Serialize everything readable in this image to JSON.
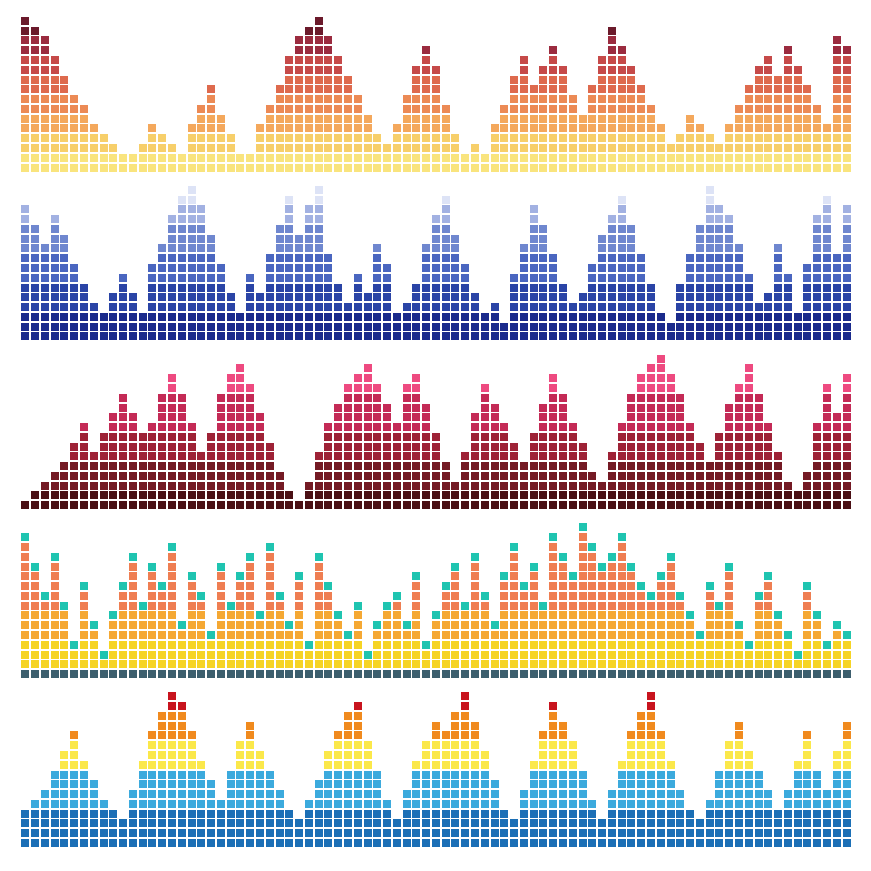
{
  "equalizers": [
    {
      "bands": [
        {
          "color": "#f9e47e",
          "rows": 2
        },
        {
          "color": "#f7cf6a",
          "rows": 2
        },
        {
          "color": "#f4a85c",
          "rows": 2
        },
        {
          "color": "#ec8a55",
          "rows": 2
        },
        {
          "color": "#de6a4e",
          "rows": 2
        },
        {
          "color": "#c64a49",
          "rows": 2
        },
        {
          "color": "#9b2b3f",
          "rows": 2
        },
        {
          "color": "#6b1a2b",
          "rows": 2
        }
      ],
      "heights": [
        16,
        15,
        14,
        12,
        10,
        8,
        7,
        5,
        4,
        3,
        2,
        2,
        3,
        5,
        4,
        3,
        2,
        5,
        7,
        9,
        6,
        4,
        2,
        2,
        5,
        7,
        9,
        12,
        14,
        15,
        16,
        14,
        12,
        10,
        8,
        6,
        4,
        3,
        5,
        8,
        11,
        13,
        11,
        7,
        4,
        2,
        3,
        2,
        5,
        7,
        10,
        12,
        9,
        11,
        13,
        11,
        8,
        6,
        9,
        12,
        15,
        13,
        11,
        9,
        7,
        5,
        3,
        4,
        6,
        5,
        4,
        3,
        5,
        7,
        9,
        11,
        12,
        10,
        13,
        11,
        9,
        7,
        5,
        14,
        13
      ]
    },
    {
      "bands": [
        {
          "color": "#1a2a8c",
          "rows": 3
        },
        {
          "color": "#2a44a6",
          "rows": 3
        },
        {
          "color": "#4a66c0",
          "rows": 3
        },
        {
          "color": "#6f87cf",
          "rows": 3
        },
        {
          "color": "#a2b1e2",
          "rows": 2
        },
        {
          "color": "#dde3f6",
          "rows": 2
        }
      ],
      "heights": [
        14,
        12,
        10,
        13,
        11,
        8,
        6,
        4,
        3,
        5,
        7,
        5,
        3,
        8,
        10,
        13,
        15,
        16,
        14,
        11,
        8,
        5,
        3,
        7,
        5,
        9,
        12,
        15,
        11,
        14,
        16,
        9,
        6,
        4,
        7,
        5,
        10,
        8,
        3,
        4,
        6,
        10,
        13,
        15,
        11,
        8,
        5,
        3,
        4,
        2,
        7,
        10,
        14,
        12,
        9,
        6,
        4,
        5,
        8,
        11,
        13,
        15,
        12,
        9,
        6,
        3,
        2,
        6,
        9,
        12,
        16,
        14,
        13,
        10,
        7,
        4,
        5,
        10,
        7,
        3,
        8,
        13,
        15,
        9,
        14
      ]
    },
    {
      "bands": [
        {
          "color": "#4a0f14",
          "rows": 2
        },
        {
          "color": "#741a24",
          "rows": 3
        },
        {
          "color": "#9e2236",
          "rows": 3
        },
        {
          "color": "#c42a56",
          "rows": 4
        },
        {
          "color": "#ee4a80",
          "rows": 4
        }
      ],
      "heights": [
        1,
        2,
        3,
        4,
        5,
        7,
        9,
        6,
        8,
        10,
        12,
        10,
        8,
        9,
        12,
        14,
        12,
        9,
        6,
        8,
        12,
        14,
        15,
        13,
        10,
        7,
        4,
        2,
        1,
        3,
        6,
        9,
        11,
        13,
        14,
        15,
        13,
        11,
        9,
        13,
        14,
        11,
        8,
        5,
        3,
        6,
        10,
        13,
        11,
        9,
        7,
        5,
        8,
        11,
        14,
        12,
        9,
        7,
        4,
        3,
        6,
        9,
        12,
        14,
        15,
        16,
        14,
        12,
        9,
        7,
        5,
        8,
        11,
        13,
        15,
        12,
        9,
        6,
        3,
        2,
        4,
        9,
        13,
        10,
        14
      ]
    },
    {
      "bands": [
        {
          "color": "#3d5f6e",
          "rows": 1
        },
        {
          "color": "#f6d424",
          "rows": 3
        },
        {
          "color": "#f5a833",
          "rows": 3
        },
        {
          "color": "#ef7e52",
          "rows": 9
        }
      ],
      "cap_color": "#1fc4b0",
      "heights": [
        15,
        12,
        9,
        13,
        8,
        4,
        10,
        6,
        3,
        7,
        10,
        13,
        8,
        12,
        10,
        14,
        6,
        11,
        9,
        5,
        12,
        8,
        11,
        13,
        7,
        14,
        9,
        6,
        11,
        4,
        13,
        10,
        7,
        5,
        8,
        3,
        6,
        8,
        9,
        6,
        11,
        4,
        7,
        10,
        12,
        8,
        13,
        9,
        6,
        11,
        14,
        10,
        12,
        8,
        15,
        13,
        11,
        16,
        14,
        12,
        13,
        15,
        12,
        10,
        9,
        11,
        13,
        9,
        7,
        5,
        10,
        8,
        12,
        6,
        4,
        9,
        11,
        7,
        5,
        3,
        10,
        7,
        4,
        6,
        5
      ]
    },
    {
      "bands": [
        {
          "color": "#1b6fb6",
          "rows": 4
        },
        {
          "color": "#3caadd",
          "rows": 4
        },
        {
          "color": "#fbe84a",
          "rows": 3
        },
        {
          "color": "#f08a1e",
          "rows": 3
        },
        {
          "color": "#c8141e",
          "rows": 2
        }
      ],
      "heights": [
        4,
        5,
        6,
        8,
        10,
        12,
        9,
        7,
        5,
        4,
        3,
        6,
        9,
        12,
        14,
        16,
        15,
        12,
        9,
        7,
        5,
        8,
        11,
        13,
        10,
        8,
        6,
        4,
        3,
        5,
        7,
        10,
        12,
        14,
        15,
        11,
        8,
        5,
        3,
        6,
        9,
        11,
        13,
        12,
        14,
        16,
        13,
        10,
        7,
        4,
        3,
        6,
        9,
        12,
        15,
        13,
        11,
        8,
        5,
        3,
        6,
        9,
        12,
        14,
        16,
        12,
        9,
        6,
        4,
        3,
        5,
        8,
        11,
        13,
        10,
        8,
        6,
        4,
        6,
        9,
        12,
        8,
        6,
        10,
        13
      ]
    }
  ]
}
